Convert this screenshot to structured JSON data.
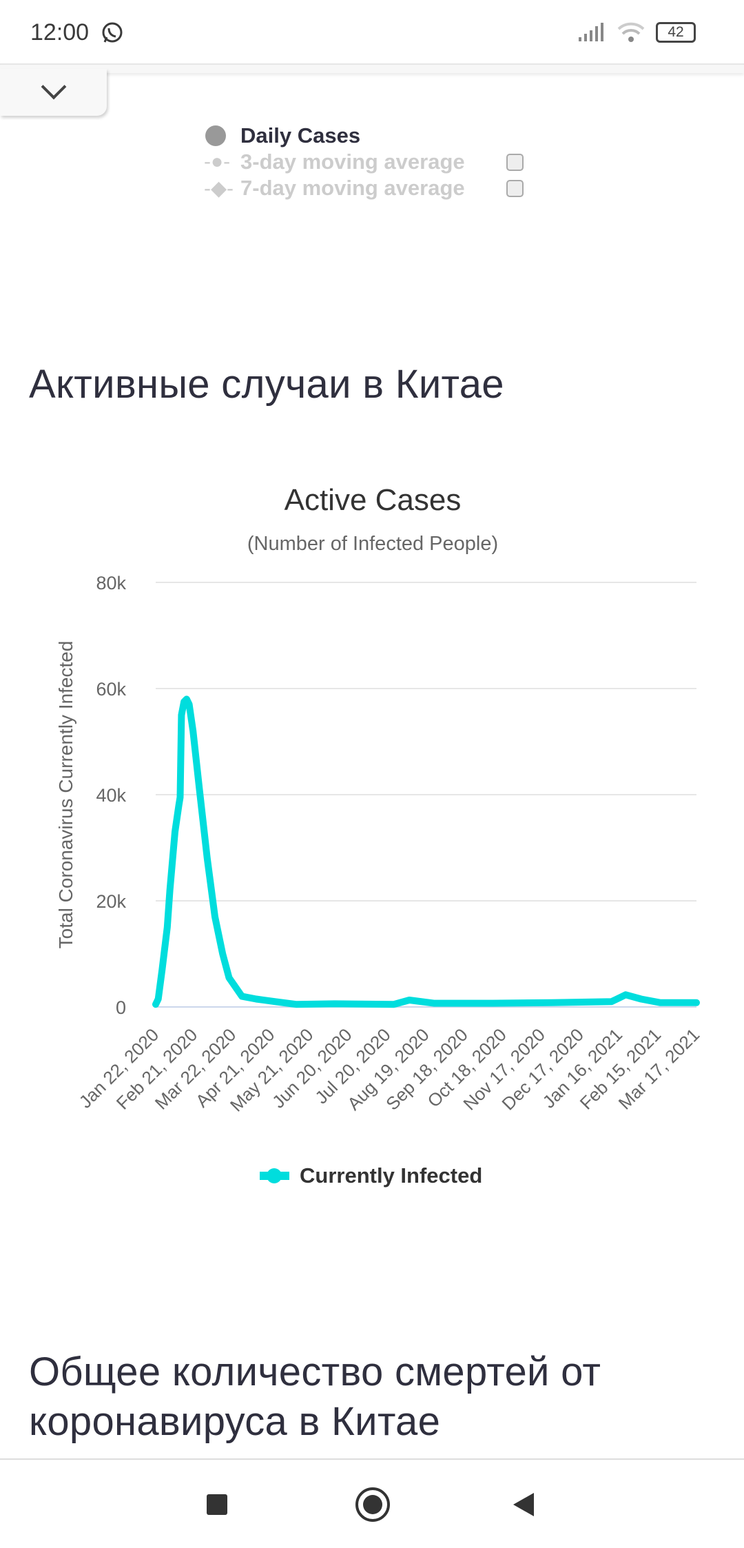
{
  "status_bar": {
    "time": "12:00",
    "battery": "42",
    "icons": [
      "whatsapp-icon",
      "signal-icon",
      "wifi-icon",
      "battery-icon"
    ]
  },
  "prev_chart_legend": {
    "items": [
      {
        "label": "Daily Cases"
      },
      {
        "label": "3-day moving average"
      },
      {
        "label": "7-day moving average"
      }
    ]
  },
  "section1": {
    "heading": "Активные случаи в Китае"
  },
  "chart_data": {
    "type": "line",
    "title": "Active Cases",
    "subtitle": "(Number of Infected People)",
    "ylabel": "Total Coronavirus Currently Infected",
    "xlabel": "",
    "ylim": [
      0,
      80000
    ],
    "yticks": [
      "0",
      "20k",
      "40k",
      "60k",
      "80k"
    ],
    "ytick_values": [
      0,
      20000,
      40000,
      60000,
      80000
    ],
    "xlim_days": [
      0,
      420
    ],
    "xticks": [
      "Jan 22, 2020",
      "Feb 21, 2020",
      "Mar 22, 2020",
      "Apr 21, 2020",
      "May 21, 2020",
      "Jun 20, 2020",
      "Jul 20, 2020",
      "Aug 19, 2020",
      "Sep 18, 2020",
      "Oct 18, 2020",
      "Nov 17, 2020",
      "Dec 17, 2020",
      "Jan 16, 2021",
      "Feb 15, 2021",
      "Mar 17, 2021"
    ],
    "grid": true,
    "legend_position": "bottom",
    "series": [
      {
        "name": "Currently Infected",
        "color": "#00dddd",
        "x_days": [
          0,
          2,
          5,
          9,
          11,
          15,
          18,
          19,
          20,
          22,
          24,
          26,
          29,
          34,
          40,
          46,
          52,
          57,
          67,
          78,
          93,
          109,
          139,
          185,
          197,
          216,
          262,
          308,
          354,
          360,
          365,
          377,
          392,
          420
        ],
        "values": [
          500,
          1500,
          7000,
          15000,
          22000,
          33000,
          38000,
          39500,
          55000,
          57500,
          58000,
          57000,
          52000,
          41000,
          28000,
          17000,
          10000,
          5500,
          2000,
          1500,
          1000,
          500,
          600,
          500,
          1300,
          700,
          700,
          800,
          1000,
          1700,
          2300,
          1500,
          800,
          800
        ]
      }
    ]
  },
  "section2": {
    "heading_line1": "Общее количество смертей от",
    "heading_line2": "коронавируса в Китае"
  },
  "nav_bar": {
    "buttons": [
      "recents-button",
      "home-button",
      "back-button"
    ]
  }
}
